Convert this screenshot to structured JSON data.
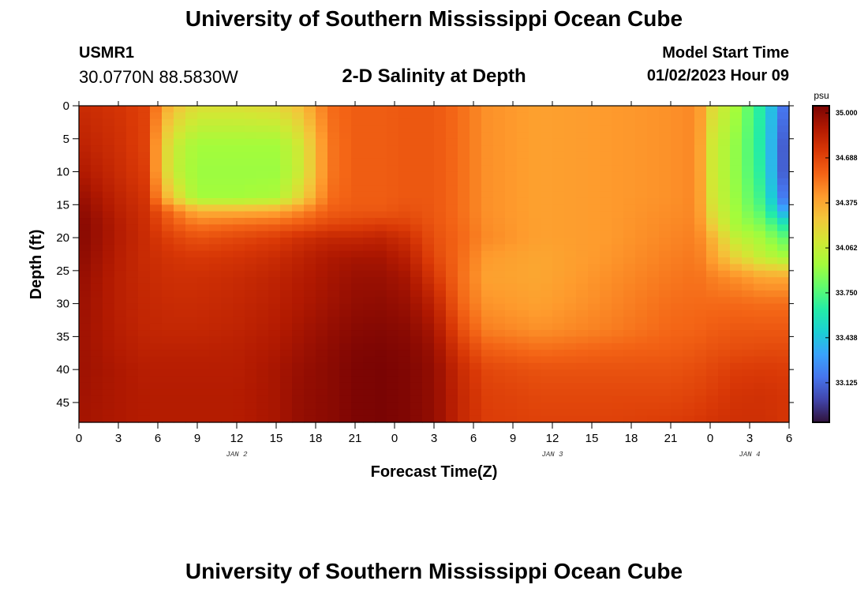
{
  "header": {
    "title": "University of Southern Mississippi Ocean Cube",
    "station_id": "USMR1",
    "coordinates": "30.0770N  88.5830W",
    "plot_title": "2-D Salinity at Depth",
    "start_label": "Model Start Time",
    "start_value": "01/02/2023 Hour 09"
  },
  "footer": {
    "title": "University of Southern Mississippi Ocean Cube"
  },
  "chart_data": {
    "type": "heatmap",
    "title": "2-D Salinity at Depth",
    "xlabel": "Forecast Time(Z)",
    "ylabel": "Depth (ft)",
    "x_hours_range": [
      0,
      54
    ],
    "x_tick_hours": [
      0,
      3,
      6,
      9,
      12,
      15,
      18,
      21,
      24,
      27,
      30,
      33,
      36,
      39,
      42,
      45,
      48,
      51,
      54
    ],
    "x_tick_labels": [
      "0",
      "3",
      "6",
      "9",
      "12",
      "15",
      "18",
      "21",
      "0",
      "3",
      "6",
      "9",
      "12",
      "15",
      "18",
      "21",
      "0",
      "3",
      "6"
    ],
    "day_labels": [
      {
        "hour": 12,
        "label": "JAN 2"
      },
      {
        "hour": 36,
        "label": "JAN 3"
      },
      {
        "hour": 51,
        "label": "JAN 4"
      }
    ],
    "ylim": [
      0,
      48
    ],
    "y_ticks": [
      0,
      5,
      10,
      15,
      20,
      25,
      30,
      35,
      40,
      45
    ],
    "colorbar": {
      "unit": "psu",
      "min": 32.85,
      "max": 35.05,
      "tick_values": [
        35.0,
        34.688,
        34.375,
        34.062,
        33.75,
        33.438,
        33.125
      ],
      "tick_labels": [
        "35.000",
        "34.688",
        "34.375",
        "34.062",
        "33.750",
        "33.438",
        "33.125"
      ],
      "colors": [
        "#30123b",
        "#4145ab",
        "#4675ed",
        "#39a2fc",
        "#1bcfd4",
        "#24eca6",
        "#61fc6c",
        "#a4fc3b",
        "#d1e834",
        "#f3c63a",
        "#fe9b2d",
        "#f36315",
        "#d93806",
        "#b11901",
        "#7a0403"
      ]
    },
    "profiles": {
      "depths": [
        0,
        6,
        10,
        14,
        16,
        18,
        20,
        23,
        26,
        30,
        34,
        37,
        40,
        44,
        48
      ],
      "columns": [
        {
          "hour": 0,
          "values": [
            34.8,
            34.85,
            34.9,
            34.97,
            35.0,
            35.02,
            35.02,
            35.0,
            34.98,
            34.96,
            34.95,
            34.95,
            34.95,
            34.94,
            34.93
          ]
        },
        {
          "hour": 3,
          "values": [
            34.76,
            34.78,
            34.8,
            34.84,
            34.86,
            34.88,
            34.88,
            34.87,
            34.86,
            34.86,
            34.87,
            34.88,
            34.9,
            34.9,
            34.9
          ]
        },
        {
          "hour": 5,
          "values": [
            34.7,
            34.7,
            34.72,
            34.76,
            34.78,
            34.79,
            34.8,
            34.8,
            34.81,
            34.82,
            34.83,
            34.85,
            34.87,
            34.88,
            34.88
          ]
        },
        {
          "hour": 7,
          "values": [
            34.3,
            34.1,
            34.08,
            34.25,
            34.55,
            34.62,
            34.7,
            34.76,
            34.78,
            34.8,
            34.82,
            34.85,
            34.87,
            34.88,
            34.88
          ]
        },
        {
          "hour": 9,
          "values": [
            34.15,
            33.95,
            33.93,
            33.95,
            34.35,
            34.52,
            34.64,
            34.74,
            34.78,
            34.8,
            34.82,
            34.85,
            34.87,
            34.88,
            34.88
          ]
        },
        {
          "hour": 12,
          "values": [
            34.15,
            33.95,
            33.93,
            33.95,
            34.35,
            34.55,
            34.68,
            34.76,
            34.8,
            34.82,
            34.84,
            34.86,
            34.87,
            34.88,
            34.88
          ]
        },
        {
          "hour": 15,
          "values": [
            34.18,
            33.95,
            33.93,
            33.98,
            34.38,
            34.58,
            34.72,
            34.8,
            34.84,
            34.86,
            34.88,
            34.9,
            34.92,
            34.92,
            34.92
          ]
        },
        {
          "hour": 17,
          "values": [
            34.3,
            34.12,
            34.1,
            34.22,
            34.48,
            34.62,
            34.78,
            34.85,
            34.88,
            34.9,
            34.93,
            34.95,
            34.97,
            34.98,
            34.98
          ]
        },
        {
          "hour": 19,
          "values": [
            34.55,
            34.52,
            34.52,
            34.55,
            34.6,
            34.68,
            34.82,
            34.9,
            34.92,
            34.94,
            34.97,
            34.99,
            35.0,
            35.0,
            35.0
          ]
        },
        {
          "hour": 21,
          "values": [
            34.6,
            34.6,
            34.6,
            34.6,
            34.62,
            34.7,
            34.82,
            34.92,
            34.96,
            34.98,
            35.01,
            35.03,
            35.04,
            35.04,
            35.04
          ]
        },
        {
          "hour": 23,
          "values": [
            34.6,
            34.6,
            34.6,
            34.6,
            34.62,
            34.72,
            34.84,
            34.92,
            34.96,
            34.99,
            35.02,
            35.04,
            35.05,
            35.05,
            35.05
          ]
        },
        {
          "hour": 25,
          "values": [
            34.62,
            34.62,
            34.62,
            34.62,
            34.65,
            34.7,
            34.78,
            34.86,
            34.92,
            34.96,
            35.0,
            35.02,
            35.03,
            35.03,
            35.03
          ]
        },
        {
          "hour": 27,
          "values": [
            34.62,
            34.62,
            34.62,
            34.62,
            34.62,
            34.63,
            34.65,
            34.68,
            34.75,
            34.85,
            34.92,
            34.96,
            34.98,
            34.98,
            34.98
          ]
        },
        {
          "hour": 29,
          "values": [
            34.55,
            34.55,
            34.55,
            34.55,
            34.55,
            34.56,
            34.57,
            34.56,
            34.55,
            34.58,
            34.66,
            34.74,
            34.8,
            34.82,
            34.82
          ]
        },
        {
          "hour": 31,
          "values": [
            34.45,
            34.45,
            34.45,
            34.45,
            34.45,
            34.46,
            34.47,
            34.42,
            34.4,
            34.44,
            34.5,
            34.6,
            34.68,
            34.71,
            34.72
          ]
        },
        {
          "hour": 35,
          "values": [
            34.4,
            34.4,
            34.4,
            34.4,
            34.4,
            34.4,
            34.4,
            34.38,
            34.38,
            34.4,
            34.45,
            34.55,
            34.64,
            34.68,
            34.7
          ]
        },
        {
          "hour": 40,
          "values": [
            34.42,
            34.42,
            34.42,
            34.42,
            34.42,
            34.42,
            34.42,
            34.43,
            34.45,
            34.47,
            34.5,
            34.58,
            34.64,
            34.68,
            34.7
          ]
        },
        {
          "hour": 45,
          "values": [
            34.45,
            34.45,
            34.45,
            34.45,
            34.46,
            34.47,
            34.48,
            34.5,
            34.52,
            34.55,
            34.57,
            34.6,
            34.64,
            34.68,
            34.72
          ]
        },
        {
          "hour": 47,
          "values": [
            34.48,
            34.48,
            34.48,
            34.48,
            34.48,
            34.49,
            34.5,
            34.52,
            34.54,
            34.56,
            34.58,
            34.62,
            34.66,
            34.7,
            34.74
          ]
        },
        {
          "hour": 48,
          "values": [
            34.2,
            34.12,
            34.12,
            34.14,
            34.18,
            34.25,
            34.36,
            34.42,
            34.5,
            34.56,
            34.6,
            34.64,
            34.68,
            34.72,
            34.76
          ]
        },
        {
          "hour": 50,
          "values": [
            33.95,
            33.9,
            33.9,
            33.92,
            33.94,
            33.96,
            34.05,
            34.2,
            34.45,
            34.56,
            34.62,
            34.66,
            34.72,
            34.76,
            34.78
          ]
        },
        {
          "hour": 52,
          "values": [
            33.6,
            33.6,
            33.62,
            33.68,
            33.75,
            33.85,
            33.95,
            34.05,
            34.38,
            34.55,
            34.62,
            34.67,
            34.73,
            34.77,
            34.78
          ]
        },
        {
          "hour": 54,
          "values": [
            33.05,
            32.95,
            32.95,
            33.05,
            33.25,
            33.55,
            33.75,
            33.95,
            34.38,
            34.55,
            34.62,
            34.67,
            34.72,
            34.75,
            34.75
          ]
        }
      ]
    }
  }
}
